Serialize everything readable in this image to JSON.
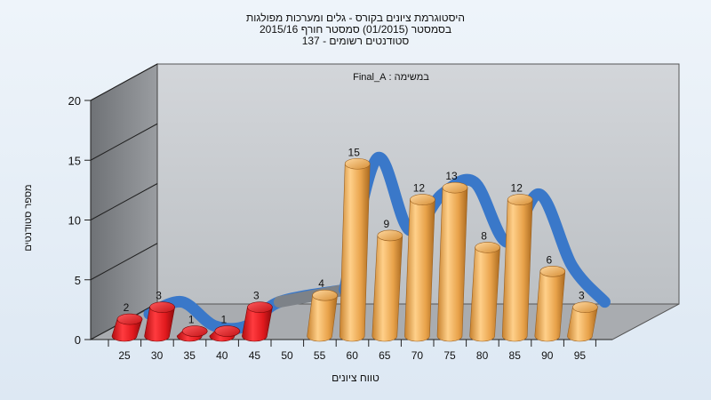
{
  "chart_data": {
    "type": "bar",
    "title_lines": [
      "היסטוגרמת ציונים בקורס - גלים ומערכות מפולגות",
      "בסמסטר  (01/2015)  סמסטר חורף 2015/16",
      "סטודנטים רשומים - 137"
    ],
    "subtitle": "במשימה : Final_A",
    "xlabel": "טווח ציונים",
    "ylabel": "מספר סטודנטים",
    "x_tick_labels": [
      "25",
      "30",
      "35",
      "40",
      "45",
      "50",
      "55",
      "60",
      "65",
      "70",
      "75",
      "80",
      "85",
      "90",
      "95"
    ],
    "y_tick_labels": [
      "0",
      "5",
      "10",
      "15",
      "20"
    ],
    "ylim": [
      0,
      20
    ],
    "grid": false,
    "legend": "none",
    "bars": [
      {
        "x": 25,
        "value": 2,
        "color": "red"
      },
      {
        "x": 30,
        "value": 3,
        "color": "red"
      },
      {
        "x": 35,
        "value": 1,
        "color": "red"
      },
      {
        "x": 40,
        "value": 1,
        "color": "red"
      },
      {
        "x": 45,
        "value": 3,
        "color": "red"
      },
      {
        "x": 55,
        "value": 4,
        "color": "orange"
      },
      {
        "x": 60,
        "value": 15,
        "color": "orange"
      },
      {
        "x": 65,
        "value": 9,
        "color": "orange"
      },
      {
        "x": 70,
        "value": 12,
        "color": "orange"
      },
      {
        "x": 75,
        "value": 13,
        "color": "orange"
      },
      {
        "x": 80,
        "value": 8,
        "color": "orange"
      },
      {
        "x": 85,
        "value": 12,
        "color": "orange"
      },
      {
        "x": 90,
        "value": 6,
        "color": "orange"
      },
      {
        "x": 95,
        "value": 3,
        "color": "orange"
      }
    ],
    "colors": {
      "red_bar": "#e0191d",
      "orange_bar": "#e8a24a",
      "trend_ribbon": "#3a78c9",
      "trend_ribbon_low": "#7d8288",
      "back_wall": "#c5c8cc",
      "side_wall": "#8a8d91",
      "floor": "#a9acb0",
      "page_background": "#e6eef6"
    }
  }
}
